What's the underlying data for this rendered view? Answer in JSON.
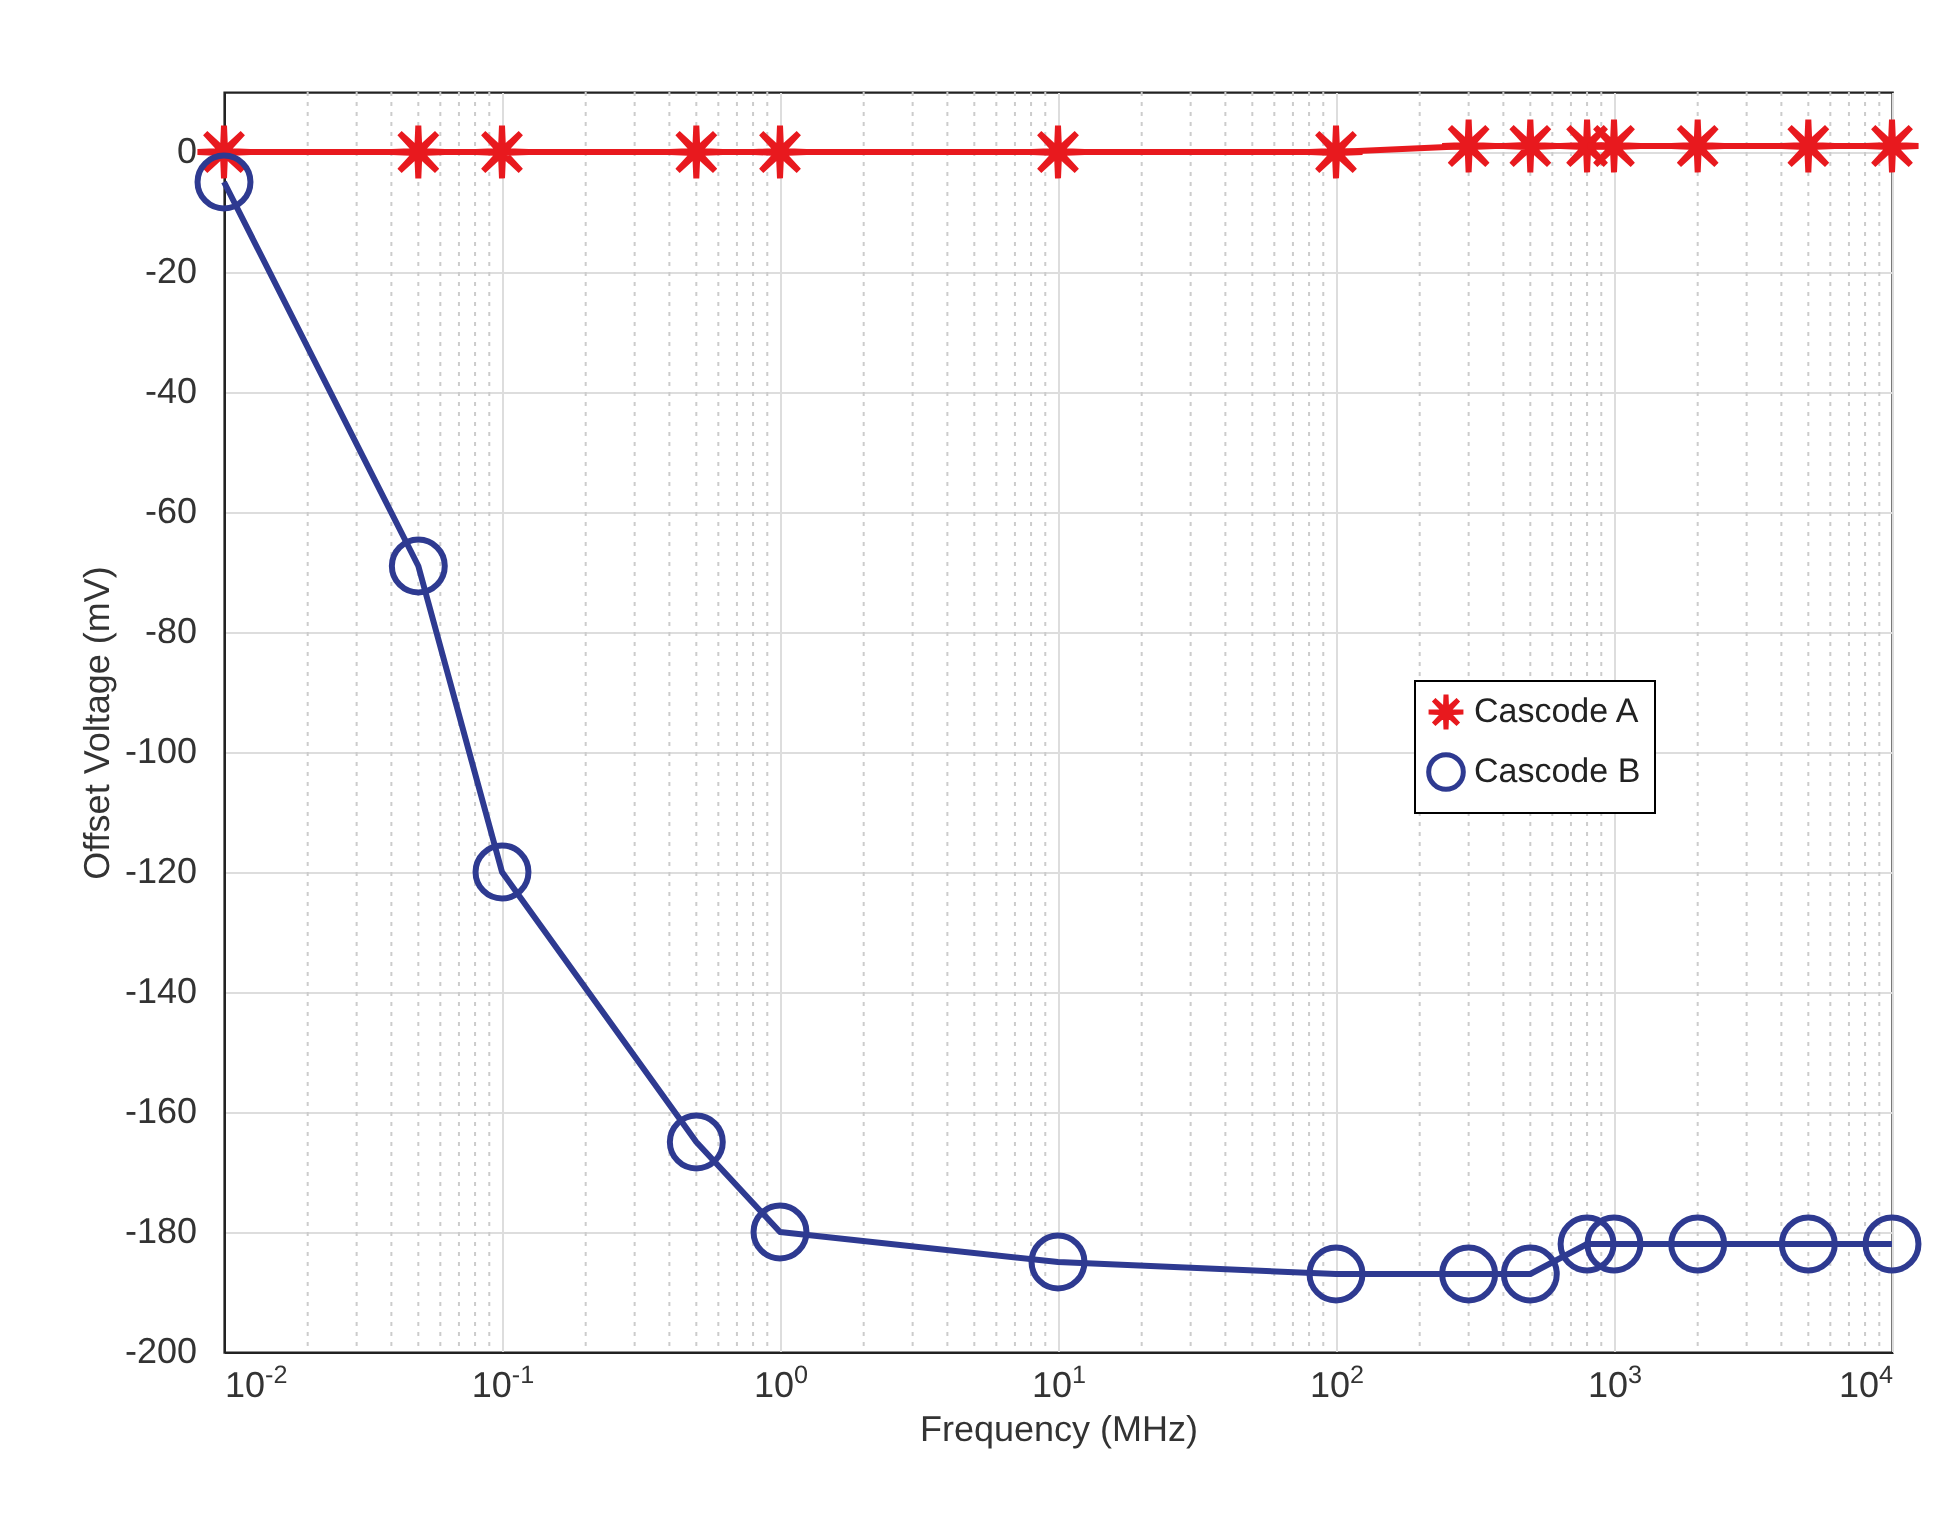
{
  "chart_data": {
    "type": "line",
    "xlabel": "Frequency (MHz)",
    "ylabel": "Offset Voltage (mV)",
    "log": "x",
    "xlim": [
      0.01,
      10000
    ],
    "xticks": [
      {
        "value": 0.01,
        "label": "10$^{-2}$"
      },
      {
        "value": 0.1,
        "label": "10$^{-1}$"
      },
      {
        "value": 1,
        "label": "10$^{0}$"
      },
      {
        "value": 10,
        "label": "10$^{1}$"
      },
      {
        "value": 100,
        "label": "10$^{2}$"
      },
      {
        "value": 1000,
        "label": "10$^{3}$"
      },
      {
        "value": 10000,
        "label": "10$^{4}$"
      }
    ],
    "ylim": [
      -200,
      10
    ],
    "yticks": [
      -200,
      -180,
      -160,
      -140,
      -120,
      -100,
      -80,
      -60,
      -40,
      -20,
      0
    ],
    "grid": true,
    "legend": "right",
    "line_style": "solid",
    "x": [
      0.01,
      0.05,
      0.1,
      0.5,
      1,
      10,
      100,
      300,
      500,
      800,
      1000,
      2000,
      5000,
      10000
    ],
    "series": [
      {
        "name": "Cascode A",
        "color": "#e8191e",
        "marker": "star",
        "values": [
          0,
          0,
          0,
          0,
          0,
          0,
          0,
          1,
          1,
          1,
          1,
          1,
          1,
          1
        ]
      },
      {
        "name": "Cascode B",
        "color": "#2e3a91",
        "marker": "circle",
        "values": [
          -5,
          -69,
          -120,
          -165,
          -180,
          -185,
          -187,
          -187,
          -187,
          -182,
          -182,
          -182,
          -182,
          -182
        ]
      }
    ]
  }
}
